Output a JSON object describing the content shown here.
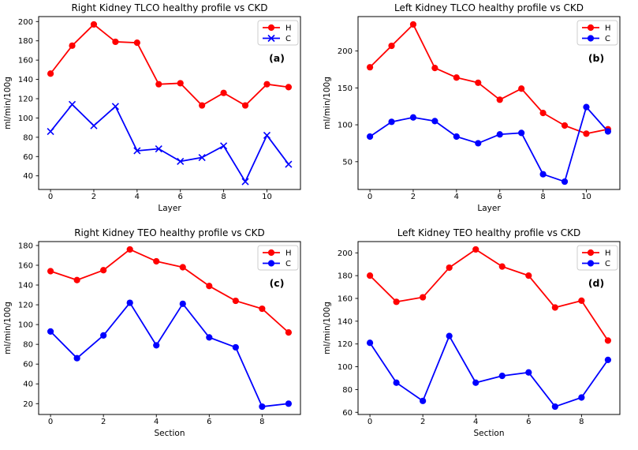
{
  "figure": {
    "background": "#ffffff",
    "series_colors": {
      "healthy": "#ff0000",
      "ckd": "#0000ff"
    },
    "legend_labels": {
      "healthy": "H",
      "ckd": "C"
    }
  },
  "chart_data": [
    {
      "id": "a",
      "type": "line",
      "title": "Right Kidney TLCO healthy profile vs CKD",
      "xlabel": "Layer",
      "ylabel": "ml/min/100g",
      "annotation": "(a)",
      "legend_position": "upper right",
      "grid": false,
      "x": [
        0,
        1,
        2,
        3,
        4,
        5,
        6,
        7,
        8,
        9,
        10,
        11
      ],
      "xlim": [
        -0.55,
        11.55
      ],
      "ylim": [
        25.85,
        205.15
      ],
      "xticks": [
        0,
        2,
        4,
        6,
        8,
        10
      ],
      "yticks": [
        40,
        60,
        80,
        100,
        120,
        140,
        160,
        180,
        200
      ],
      "series": [
        {
          "name": "H",
          "color": "#ff0000",
          "marker": "circle",
          "values": [
            146,
            175,
            197,
            179,
            178,
            135,
            136,
            113,
            126,
            113,
            135,
            132
          ]
        },
        {
          "name": "C",
          "color": "#0000ff",
          "marker": "x",
          "values": [
            86,
            114,
            92,
            112,
            66,
            68,
            55,
            59,
            71,
            34,
            82,
            52
          ]
        }
      ]
    },
    {
      "id": "b",
      "type": "line",
      "title": "Left Kidney TLCO healthy profile vs CKD",
      "xlabel": "Layer",
      "ylabel": "ml/min/100g",
      "annotation": "(b)",
      "legend_position": "upper right",
      "grid": false,
      "x": [
        0,
        1,
        2,
        3,
        4,
        5,
        6,
        7,
        8,
        9,
        10,
        11
      ],
      "xlim": [
        -0.55,
        11.55
      ],
      "ylim": [
        12.35,
        246.65
      ],
      "xticks": [
        0,
        2,
        4,
        6,
        8,
        10
      ],
      "yticks": [
        50,
        100,
        150,
        200
      ],
      "series": [
        {
          "name": "H",
          "color": "#ff0000",
          "marker": "circle",
          "values": [
            178,
            207,
            236,
            177,
            164,
            157,
            134,
            149,
            116,
            99,
            88,
            94
          ]
        },
        {
          "name": "C",
          "color": "#0000ff",
          "marker": "circle",
          "values": [
            84,
            104,
            110,
            105,
            84,
            75,
            87,
            89,
            33,
            23,
            124,
            91
          ]
        }
      ]
    },
    {
      "id": "c",
      "type": "line",
      "title": "Right Kidney TEO healthy profile vs CKD",
      "xlabel": "Section",
      "ylabel": "ml/min/100g",
      "annotation": "(c)",
      "legend_position": "upper right",
      "grid": false,
      "x": [
        0,
        1,
        2,
        3,
        4,
        5,
        6,
        7,
        8,
        9
      ],
      "xlim": [
        -0.45,
        9.45
      ],
      "ylim": [
        9.05,
        183.95
      ],
      "xticks": [
        0,
        2,
        4,
        6,
        8
      ],
      "yticks": [
        20,
        40,
        60,
        80,
        100,
        120,
        140,
        160,
        180
      ],
      "series": [
        {
          "name": "H",
          "color": "#ff0000",
          "marker": "circle",
          "values": [
            154,
            145,
            155,
            176,
            164,
            158,
            139,
            124,
            116,
            92
          ]
        },
        {
          "name": "C",
          "color": "#0000ff",
          "marker": "circle",
          "values": [
            93,
            66,
            89,
            122,
            79,
            121,
            87,
            77,
            17,
            20
          ]
        }
      ]
    },
    {
      "id": "d",
      "type": "line",
      "title": "Left Kidney TEO healthy profile vs CKD",
      "xlabel": "Section",
      "ylabel": "ml/min/100g",
      "annotation": "(d)",
      "legend_position": "upper right",
      "grid": false,
      "x": [
        0,
        1,
        2,
        3,
        4,
        5,
        6,
        7,
        8,
        9
      ],
      "xlim": [
        -0.45,
        9.45
      ],
      "ylim": [
        58.1,
        209.9
      ],
      "xticks": [
        0,
        2,
        4,
        6,
        8
      ],
      "yticks": [
        60,
        80,
        100,
        120,
        140,
        160,
        180,
        200
      ],
      "series": [
        {
          "name": "H",
          "color": "#ff0000",
          "marker": "circle",
          "values": [
            180,
            157,
            161,
            187,
            203,
            188,
            180,
            152,
            158,
            123
          ]
        },
        {
          "name": "C",
          "color": "#0000ff",
          "marker": "circle",
          "values": [
            121,
            86,
            70,
            127,
            86,
            92,
            95,
            65,
            73,
            106
          ]
        }
      ]
    }
  ]
}
